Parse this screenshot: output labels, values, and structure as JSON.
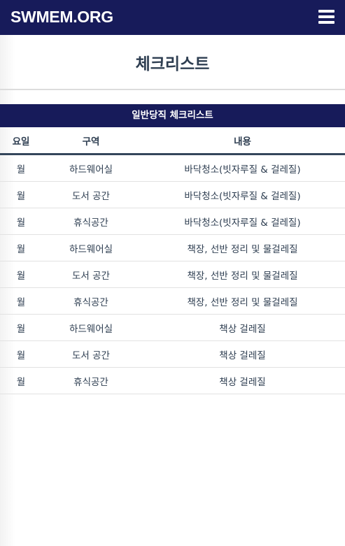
{
  "navbar": {
    "brand": "SWMEM.ORG",
    "menu_icon": "hamburger-menu-icon"
  },
  "page": {
    "title": "체크리스트"
  },
  "checklist": {
    "caption": "일반당직 체크리스트",
    "columns": [
      "요일",
      "구역",
      "내용"
    ],
    "rows": [
      {
        "day": "월",
        "area": "하드웨어실",
        "task": "바닥청소(빗자루질 & 걸레질)"
      },
      {
        "day": "월",
        "area": "도서 공간",
        "task": "바닥청소(빗자루질 & 걸레질)"
      },
      {
        "day": "월",
        "area": "휴식공간",
        "task": "바닥청소(빗자루질 & 걸레질)"
      },
      {
        "day": "월",
        "area": "하드웨어실",
        "task": "책장, 선반 정리 및 물걸레질"
      },
      {
        "day": "월",
        "area": "도서 공간",
        "task": "책장, 선반 정리 및 물걸레질"
      },
      {
        "day": "월",
        "area": "휴식공간",
        "task": "책장, 선반 정리 및 물걸레질"
      },
      {
        "day": "월",
        "area": "하드웨어실",
        "task": "책상 걸레질"
      },
      {
        "day": "월",
        "area": "도서 공간",
        "task": "책상 걸레질"
      },
      {
        "day": "월",
        "area": "휴식공간",
        "task": "책상 걸레질"
      }
    ]
  },
  "colors": {
    "navbar_bg": "#171b5a",
    "text": "#2e3e51",
    "header_rule": "#34465b",
    "row_rule": "#e2e2e2"
  }
}
